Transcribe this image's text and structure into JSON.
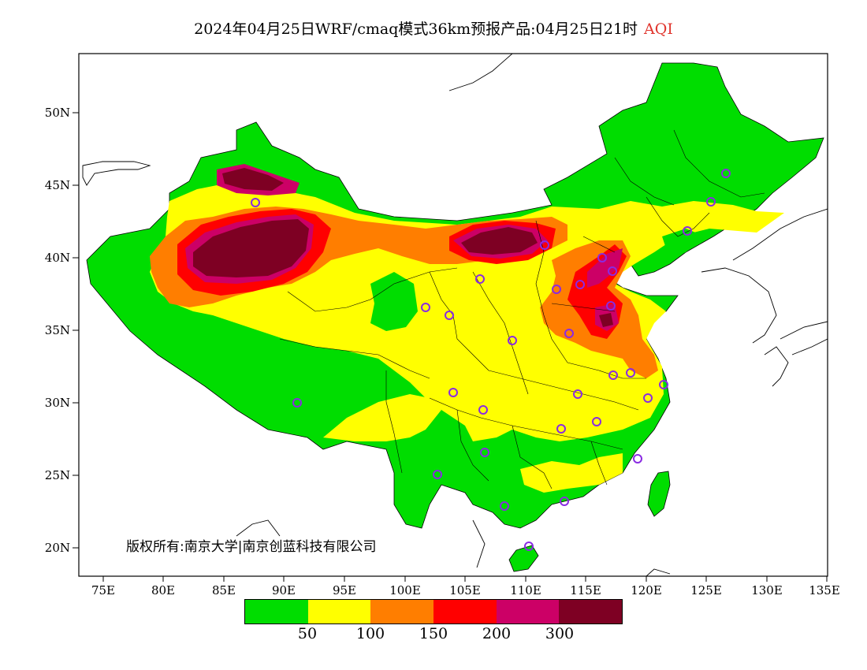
{
  "title": {
    "main": "2024年04月25日WRF/cmaq模式36km预报产品:04月25日21时",
    "variable": "AQI"
  },
  "axes": {
    "latitude_labels": [
      "50N",
      "45N",
      "40N",
      "35N",
      "30N",
      "25N",
      "20N"
    ],
    "longitude_labels": [
      "75E",
      "80E",
      "85E",
      "90E",
      "95E",
      "100E",
      "105E",
      "110E",
      "115E",
      "120E",
      "125E",
      "130E",
      "135E"
    ]
  },
  "legend": {
    "colors": [
      "#00dd00",
      "#ffff00",
      "#ff7e00",
      "#ff0000",
      "#cc0066",
      "#7e0023"
    ],
    "labels": [
      "50",
      "100",
      "150",
      "200",
      "300"
    ]
  },
  "copyright": "版权所有:南京大学|南京创蓝科技有限公司",
  "colors": {
    "good": "#00dd00",
    "moderate": "#ffff00",
    "unhealthy_sensitive": "#ff7e00",
    "unhealthy": "#ff0000",
    "very_unhealthy": "#cc0066",
    "hazardous": "#7e0023",
    "station_marker": "#8a2be2",
    "title_accent": "#e0342c"
  }
}
